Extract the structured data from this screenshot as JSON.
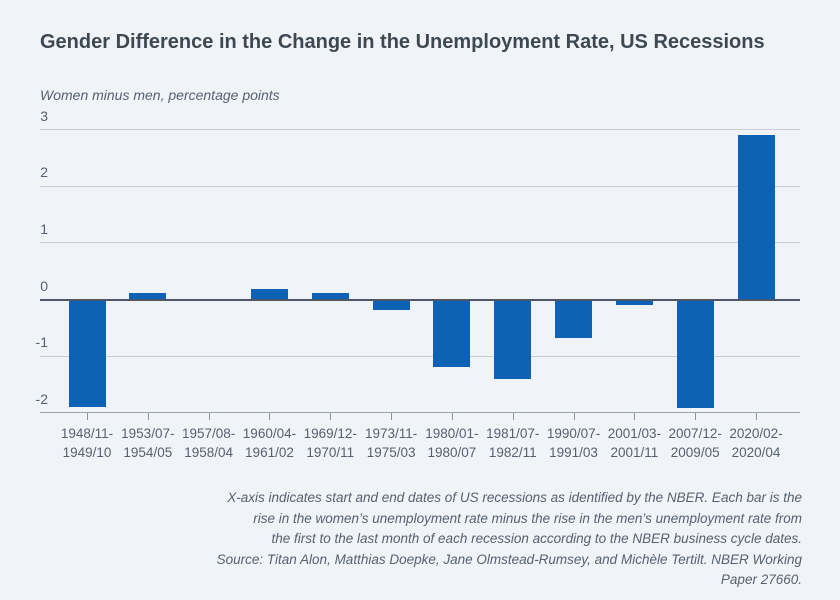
{
  "page": {
    "title": "Gender Difference in the Change in the Unemployment Rate, US Recessions",
    "subtitle": "Women minus men, percentage points"
  },
  "colors": {
    "background": "#F0F4F8",
    "bar": "#0E62B5",
    "title_text": "#3E4853",
    "body_text": "#566070",
    "gridline": "#C9CED6",
    "zero_line": "#4E5763",
    "axis_line": "#99A1AB",
    "tick": "#8A939E"
  },
  "chart_data": {
    "type": "bar",
    "title": "Gender Difference in the Change in the Unemployment Rate, US Recessions",
    "ylabel": "Women minus men, percentage points",
    "xlabel": "",
    "grid": true,
    "legend": "none",
    "ylim": [
      -2,
      3.2
    ],
    "yticks": [
      3,
      2,
      1,
      0,
      -1,
      -2
    ],
    "categories": [
      {
        "start": "1948/11-",
        "end": "1949/10"
      },
      {
        "start": "1953/07-",
        "end": "1954/05"
      },
      {
        "start": "1957/08-",
        "end": "1958/04"
      },
      {
        "start": "1960/04-",
        "end": "1961/02"
      },
      {
        "start": "1969/12-",
        "end": "1970/11"
      },
      {
        "start": "1973/11-",
        "end": "1975/03"
      },
      {
        "start": "1980/01-",
        "end": "1980/07"
      },
      {
        "start": "1981/07-",
        "end": "1982/11"
      },
      {
        "start": "1990/07-",
        "end": "1991/03"
      },
      {
        "start": "2001/03-",
        "end": "2001/11"
      },
      {
        "start": "2007/12-",
        "end": "2009/05"
      },
      {
        "start": "2020/02-",
        "end": "2020/04"
      }
    ],
    "values": [
      -1.9,
      0.12,
      0,
      0.19,
      0.12,
      -0.19,
      -1.2,
      -1.4,
      -0.68,
      -0.1,
      -1.92,
      2.9
    ]
  },
  "footnote": {
    "lines": [
      "X-axis indicates start and end dates of US recessions as identified by the NBER. Each bar is the",
      "rise in the women’s unemployment rate minus the rise in the men’s unemployment rate from",
      "the first to the last month of each recession according to the NBER business cycle dates."
    ],
    "source": "Source: Titan Alon, Matthias Doepke, Jane Olmstead-Rumsey, and Michèle Tertilt. NBER Working Paper 27660."
  }
}
